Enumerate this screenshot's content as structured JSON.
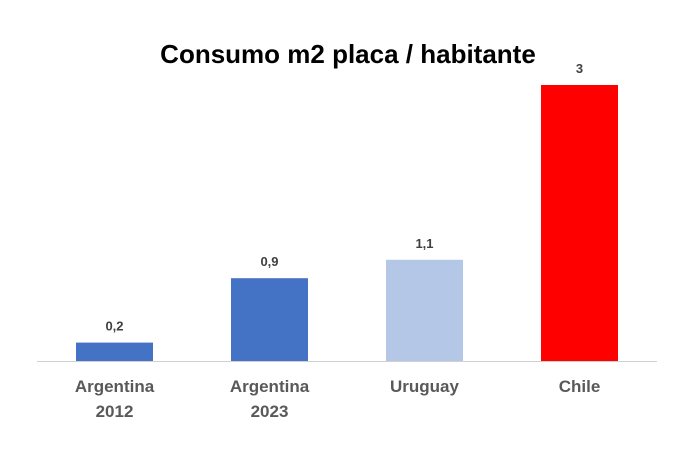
{
  "chart_data": {
    "type": "bar",
    "title": "Consumo m2 placa / habitante",
    "categories": [
      [
        "Argentina",
        "2012"
      ],
      [
        "Argentina",
        "2023"
      ],
      [
        "Uruguay"
      ],
      [
        "Chile"
      ]
    ],
    "values": [
      0.2,
      0.9,
      1.1,
      3
    ],
    "data_labels": [
      "0,2",
      "0,9",
      "1,1",
      "3"
    ],
    "bar_colors": [
      "#4472C4",
      "#4472C4",
      "#B4C7E7",
      "#FF0000"
    ],
    "ylim": [
      0,
      3
    ],
    "xlabel": "",
    "ylabel": "",
    "grid": false,
    "legend": "none"
  }
}
